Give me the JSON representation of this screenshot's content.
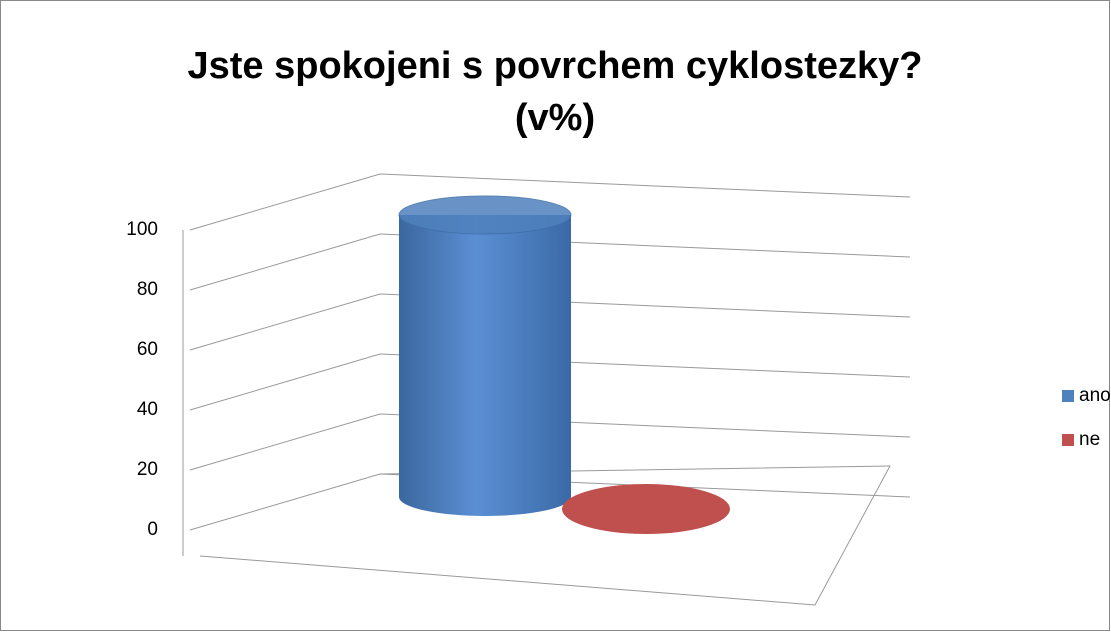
{
  "chart_data": {
    "type": "bar",
    "title": "Jste spokojeni s povrchem cyklostezky? (v%)",
    "categories": [
      null
    ],
    "series": [
      {
        "name": "ano",
        "color": "#4f81bd",
        "values": [
          100
        ]
      },
      {
        "name": "ne",
        "color": "#c0504d",
        "values": [
          0
        ]
      }
    ],
    "ylim": [
      0,
      100
    ],
    "yticks": [
      0,
      20,
      40,
      60,
      80,
      100
    ],
    "grid": true,
    "legend": "right"
  }
}
